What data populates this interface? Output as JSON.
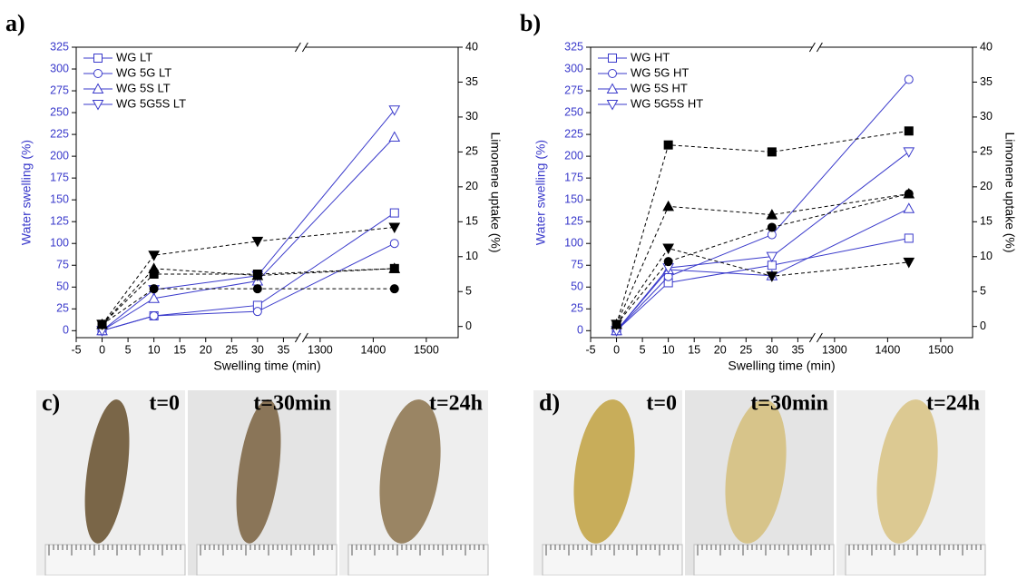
{
  "chart_data": [
    {
      "type": "line",
      "label": "a)",
      "xlabel": "Swelling time (min)",
      "ylabel": "Water swelling (%)",
      "y2label": "Limonene uptake (%)",
      "x": [
        0,
        10,
        30,
        1440
      ],
      "xlim": [
        -5,
        1560
      ],
      "xbreak": [
        38.5,
        1265
      ],
      "xticks": [
        -5,
        0,
        5,
        10,
        15,
        20,
        25,
        30,
        35,
        1300,
        1400,
        1500
      ],
      "ylim": [
        -8,
        325
      ],
      "yticks": [
        0,
        25,
        50,
        75,
        100,
        125,
        150,
        175,
        200,
        225,
        250,
        275,
        300,
        325
      ],
      "y2lim": [
        -1.6,
        40
      ],
      "y2ticks": [
        0,
        5,
        10,
        15,
        20,
        25,
        30,
        35,
        40
      ],
      "legend": "upper left",
      "series": [
        {
          "name": "WG LT",
          "color": "#3a3acb",
          "marker": "square",
          "values": [
            0,
            17,
            29,
            135
          ]
        },
        {
          "name": "WG 5G LT",
          "color": "#3a3acb",
          "marker": "circle",
          "values": [
            0,
            17,
            22,
            100
          ]
        },
        {
          "name": "WG 5S LT",
          "color": "#3a3acb",
          "marker": "up",
          "values": [
            0,
            37,
            57,
            222
          ]
        },
        {
          "name": "WG 5G5S LT",
          "color": "#3a3acb",
          "marker": "down",
          "values": [
            0,
            47,
            63,
            253
          ]
        },
        {
          "axis": "y2",
          "color": "#000000",
          "marker": "square",
          "values": [
            0.3,
            7.5,
            7.5,
            8.3
          ]
        },
        {
          "axis": "y2",
          "color": "#000000",
          "marker": "circle",
          "values": [
            0.3,
            5.4,
            5.4,
            5.4
          ]
        },
        {
          "axis": "y2",
          "color": "#000000",
          "marker": "up",
          "values": [
            0.3,
            8.3,
            7.3,
            8.3
          ]
        },
        {
          "axis": "y2",
          "color": "#000000",
          "marker": "down",
          "values": [
            0.3,
            10.2,
            12.2,
            14.2
          ]
        }
      ]
    },
    {
      "type": "line",
      "label": "b)",
      "xlabel": "Swelling time (min)",
      "ylabel": "Water swelling (%)",
      "y2label": "Limonene uptake (%)",
      "x": [
        0,
        10,
        30,
        1440
      ],
      "xlim": [
        -5,
        1560
      ],
      "xbreak": [
        38.5,
        1265
      ],
      "xticks": [
        -5,
        0,
        5,
        10,
        15,
        20,
        25,
        30,
        35,
        1300,
        1400,
        1500
      ],
      "ylim": [
        -8,
        325
      ],
      "yticks": [
        0,
        25,
        50,
        75,
        100,
        125,
        150,
        175,
        200,
        225,
        250,
        275,
        300,
        325
      ],
      "y2lim": [
        -1.6,
        40
      ],
      "y2ticks": [
        0,
        5,
        10,
        15,
        20,
        25,
        30,
        35,
        40
      ],
      "legend": "upper left",
      "series": [
        {
          "name": "WG HT",
          "color": "#3a3acb",
          "marker": "square",
          "values": [
            0,
            55,
            75,
            106
          ]
        },
        {
          "name": "WG 5G HT",
          "color": "#3a3acb",
          "marker": "circle",
          "values": [
            0,
            62,
            110,
            288
          ]
        },
        {
          "name": "WG 5S HT",
          "color": "#3a3acb",
          "marker": "up",
          "values": [
            0,
            70,
            63,
            140
          ]
        },
        {
          "name": "WG 5G5S HT",
          "color": "#3a3acb",
          "marker": "down",
          "values": [
            0,
            72,
            85,
            205
          ]
        },
        {
          "axis": "y2",
          "color": "#000000",
          "marker": "square",
          "values": [
            0.3,
            26,
            25,
            28
          ]
        },
        {
          "axis": "y2",
          "color": "#000000",
          "marker": "circle",
          "values": [
            0.3,
            9.3,
            14.2,
            19
          ]
        },
        {
          "axis": "y2",
          "color": "#000000",
          "marker": "up",
          "values": [
            0.3,
            17.2,
            16,
            19
          ]
        },
        {
          "axis": "y2",
          "color": "#000000",
          "marker": "down",
          "values": [
            0.3,
            11.2,
            7.2,
            9.2
          ]
        }
      ]
    }
  ],
  "panels": [
    {
      "label": "c)",
      "times": [
        "t=0",
        "t=30min",
        "t=24h"
      ]
    },
    {
      "label": "d)",
      "times": [
        "t=0",
        "t=30min",
        "t=24h"
      ]
    }
  ]
}
